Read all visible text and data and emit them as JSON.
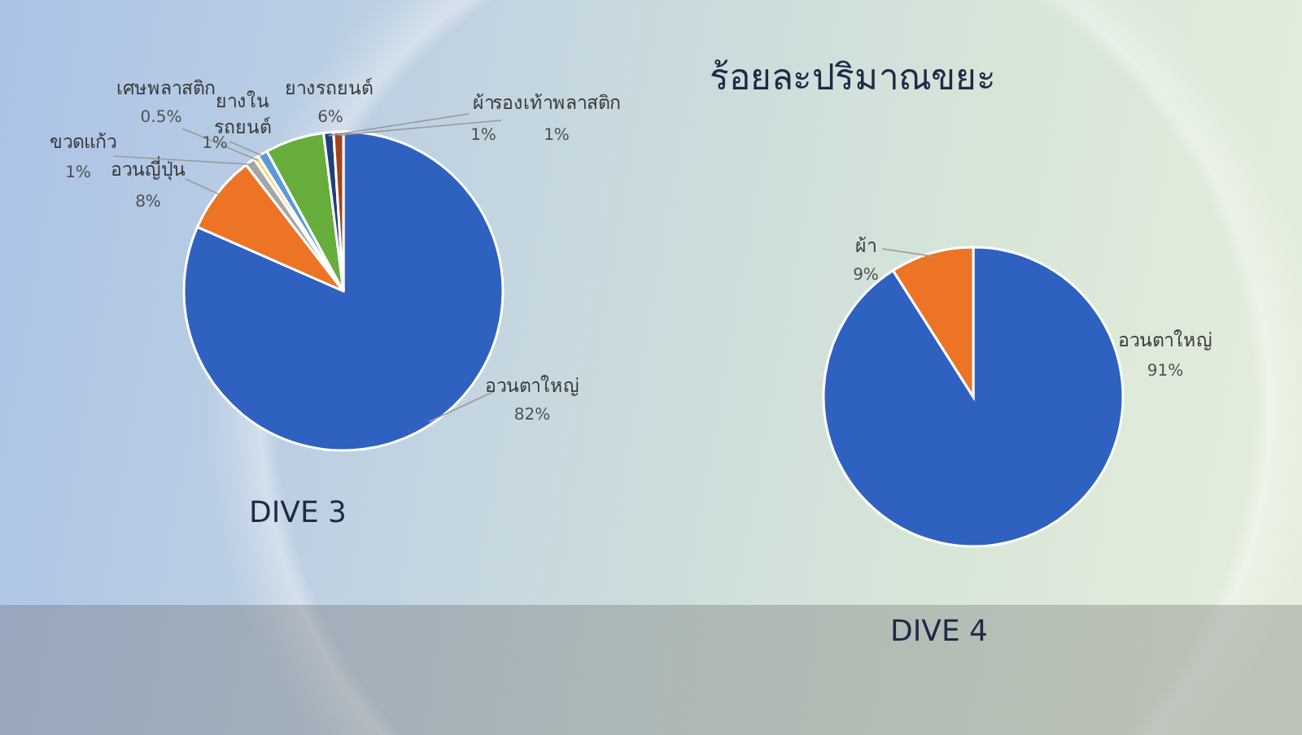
{
  "chart_data": [
    {
      "type": "pie",
      "title": "DIVE 3",
      "categories": [
        "อวนตาใหญ่",
        "อวนญี่ปุ่น",
        "ขวดแก้ว",
        "เศษพลาสติก",
        "ยางใน\nรถยนต์",
        "ยางรถยนต์",
        "ผ้า",
        "รองเท้าพลาสติก"
      ],
      "values": [
        82,
        8,
        1,
        0.5,
        1,
        6,
        1,
        1
      ],
      "colors": [
        "#2f62c0",
        "#ec7424",
        "#a5a5a5",
        "#ffd36b",
        "#5b9bd5",
        "#66ad3c",
        "#213f7a",
        "#a5421a"
      ],
      "value_labels": [
        "82%",
        "8%",
        "1%",
        "0.5%",
        "1%",
        "6%",
        "1%",
        "1%"
      ]
    },
    {
      "type": "pie",
      "title": "ร้อยละปริมาณขยะ",
      "subtitle": "DIVE 4",
      "categories": [
        "อวนตาใหญ่",
        "ผ้า"
      ],
      "values": [
        91,
        9
      ],
      "colors": [
        "#2f62c0",
        "#ec7424"
      ],
      "value_labels": [
        "91%",
        "9%"
      ]
    }
  ]
}
